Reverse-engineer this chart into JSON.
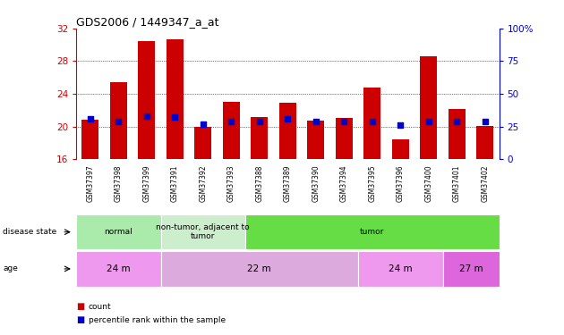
{
  "title": "GDS2006 / 1449347_a_at",
  "samples": [
    "GSM37397",
    "GSM37398",
    "GSM37399",
    "GSM37391",
    "GSM37392",
    "GSM37393",
    "GSM37388",
    "GSM37389",
    "GSM37390",
    "GSM37394",
    "GSM37395",
    "GSM37396",
    "GSM37400",
    "GSM37401",
    "GSM37402"
  ],
  "count_values": [
    20.8,
    25.4,
    30.5,
    30.7,
    20.0,
    23.0,
    21.2,
    22.9,
    20.7,
    21.0,
    24.8,
    18.4,
    28.6,
    22.1,
    20.1
  ],
  "percentile_values": [
    31,
    29,
    33,
    32,
    27,
    29,
    29,
    31,
    29,
    29,
    29,
    26,
    29,
    29,
    29
  ],
  "ylim_left": [
    16,
    32
  ],
  "yticks_left": [
    16,
    20,
    24,
    28,
    32
  ],
  "ylim_right": [
    0,
    100
  ],
  "yticks_right": [
    0,
    25,
    50,
    75,
    100
  ],
  "bar_color": "#cc0000",
  "dot_color": "#0000cc",
  "ds_groups": [
    {
      "label": "normal",
      "start": 0,
      "end": 3,
      "color": "#aaeaaa"
    },
    {
      "label": "non-tumor, adjacent to\ntumor",
      "start": 3,
      "end": 6,
      "color": "#cceecc"
    },
    {
      "label": "tumor",
      "start": 6,
      "end": 15,
      "color": "#66dd44"
    }
  ],
  "age_groups": [
    {
      "label": "24 m",
      "start": 0,
      "end": 3,
      "color": "#ee99ee"
    },
    {
      "label": "22 m",
      "start": 3,
      "end": 10,
      "color": "#ddaadd"
    },
    {
      "label": "24 m",
      "start": 10,
      "end": 13,
      "color": "#ee99ee"
    },
    {
      "label": "27 m",
      "start": 13,
      "end": 15,
      "color": "#dd66dd"
    }
  ],
  "tick_color_left": "#cc0000",
  "tick_color_right": "#0000cc",
  "legend_count_color": "#cc0000",
  "legend_pct_color": "#0000cc"
}
